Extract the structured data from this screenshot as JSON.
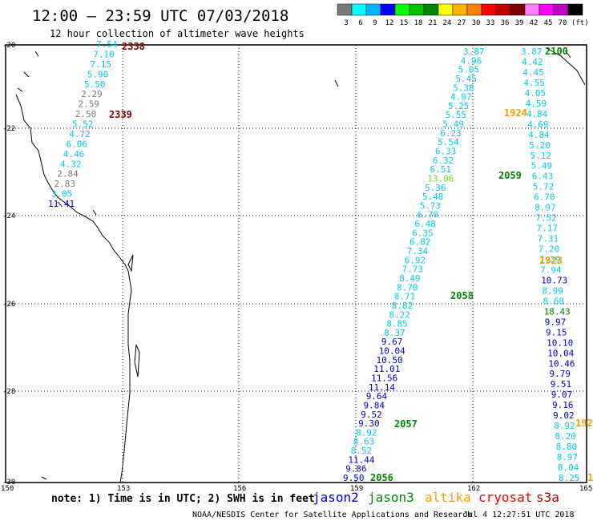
{
  "header": {
    "title": "12:00 – 23:59 UTC 07/03/2018",
    "subtitle": "12 hour collection of altimeter wave heights"
  },
  "colorbar": {
    "unit": "(ft)",
    "bins": [
      {
        "color": "#7a7a7a",
        "label": "3"
      },
      {
        "color": "#00ffff",
        "label": "6"
      },
      {
        "color": "#00b4ff",
        "label": "9"
      },
      {
        "color": "#0000ff",
        "label": "12"
      },
      {
        "color": "#00ff00",
        "label": "15"
      },
      {
        "color": "#00c000",
        "label": "18"
      },
      {
        "color": "#008800",
        "label": "21"
      },
      {
        "color": "#ffff00",
        "label": "24"
      },
      {
        "color": "#ffb400",
        "label": "27"
      },
      {
        "color": "#ff8000",
        "label": "30"
      },
      {
        "color": "#ff0000",
        "label": "33"
      },
      {
        "color": "#c00000",
        "label": "36"
      },
      {
        "color": "#800000",
        "label": "39"
      },
      {
        "color": "#ff80ff",
        "label": "42"
      },
      {
        "color": "#ff00ff",
        "label": "45"
      },
      {
        "color": "#c000c0",
        "label": "70"
      },
      {
        "color": "#000000",
        "label": ""
      }
    ]
  },
  "axes": {
    "lat_labels": [
      "-20",
      "-22",
      "-24",
      "-26",
      "-28",
      "-30"
    ],
    "lon_labels": [
      "150",
      "153",
      "156",
      "159",
      "162",
      "165"
    ]
  },
  "colors": {
    "gray": "#7a7a7a",
    "cyan": "#00ccee",
    "blue": "#0000cc",
    "green": "#008800",
    "orange": "#ff9900",
    "darkred": "#880000",
    "lightgreen": "#66dd22"
  },
  "tracks": {
    "track_a": [
      "7.54",
      "7.10",
      "7.15",
      "5.90",
      "5.50",
      "2.29",
      "2.59",
      "2.50",
      "5.52",
      "4.72",
      "6.06",
      "4.46",
      "4.32",
      "2.84",
      "2.83",
      "3.05",
      "11.41"
    ],
    "track_a_colors": [
      "cyan",
      "cyan",
      "cyan",
      "cyan",
      "cyan",
      "gray",
      "gray",
      "gray",
      "cyan",
      "cyan",
      "cyan",
      "cyan",
      "cyan",
      "gray",
      "gray",
      "cyan",
      "blue"
    ],
    "track_b": [
      "3.87",
      "4.96",
      "5.05",
      "5.45",
      "5.38",
      "4.97",
      "5.25",
      "5.55",
      "5.49",
      "6.23",
      "5.54",
      "6.33",
      "6.32",
      "6.51",
      "13.06",
      "5.36",
      "5.48",
      "5.73",
      "6.70",
      "6.48",
      "6.35",
      "6.82",
      "7.34",
      "6.92",
      "7.73",
      "8.49",
      "8.70",
      "8.71",
      "8.82",
      "8.22",
      "8.85",
      "8.37",
      "9.67",
      "10.04",
      "10.50",
      "11.01",
      "11.56",
      "11.14",
      "9.64",
      "9.84",
      "9.52",
      "9.30",
      "8.92",
      "8.63",
      "8.52",
      "11.44",
      "9.86",
      "9.50"
    ],
    "track_b_colors": [
      "cyan",
      "cyan",
      "cyan",
      "cyan",
      "cyan",
      "cyan",
      "cyan",
      "cyan",
      "cyan",
      "cyan",
      "cyan",
      "cyan",
      "cyan",
      "cyan",
      "lightgreen",
      "cyan",
      "cyan",
      "cyan",
      "cyan",
      "cyan",
      "cyan",
      "cyan",
      "cyan",
      "cyan",
      "cyan",
      "cyan",
      "cyan",
      "cyan",
      "cyan",
      "cyan",
      "cyan",
      "cyan",
      "blue",
      "blue",
      "blue",
      "blue",
      "blue",
      "blue",
      "blue",
      "blue",
      "blue",
      "blue",
      "cyan",
      "cyan",
      "cyan",
      "blue",
      "blue",
      "blue"
    ],
    "track_c": [
      "3.87",
      "4.42",
      "4.45",
      "4.55",
      "4.05",
      "4.59",
      "4.84",
      "4.69",
      "4.84",
      "5.20",
      "5.12",
      "5.49",
      "6.43",
      "5.72",
      "6.70",
      "8.97",
      "7.52",
      "7.17",
      "7.31",
      "7.20",
      "7.39",
      "7.94",
      "10.73",
      "8.99",
      "8.68",
      "18.43",
      "9.97",
      "9.15",
      "10.10",
      "10.04",
      "10.46",
      "9.79",
      "9.51",
      "9.07",
      "9.16",
      "9.02",
      "8.92",
      "8.20",
      "8.80",
      "8.97",
      "8.04",
      "8.25"
    ],
    "track_c_colors": [
      "cyan",
      "cyan",
      "cyan",
      "cyan",
      "cyan",
      "cyan",
      "cyan",
      "cyan",
      "cyan",
      "cyan",
      "cyan",
      "cyan",
      "cyan",
      "cyan",
      "cyan",
      "cyan",
      "cyan",
      "cyan",
      "cyan",
      "cyan",
      "cyan",
      "cyan",
      "blue",
      "cyan",
      "cyan",
      "green",
      "blue",
      "blue",
      "blue",
      "blue",
      "blue",
      "blue",
      "blue",
      "blue",
      "blue",
      "blue",
      "cyan",
      "cyan",
      "cyan",
      "cyan",
      "cyan",
      "cyan"
    ]
  },
  "pass_times": [
    {
      "label": "2338",
      "color": "darkred"
    },
    {
      "label": "2339",
      "color": "darkred"
    },
    {
      "label": "2100",
      "color": "green"
    },
    {
      "label": "1924",
      "color": "orange"
    },
    {
      "label": "2059",
      "color": "green"
    },
    {
      "label": "1923",
      "color": "orange"
    },
    {
      "label": "2058",
      "color": "green"
    },
    {
      "label": "2057",
      "color": "green"
    },
    {
      "label": "2056",
      "color": "green"
    },
    {
      "label": "192",
      "color": "orange"
    },
    {
      "label": "1",
      "color": "orange"
    }
  ],
  "footer": {
    "note": "note: 1) Time is in UTC; 2) SWH is in feet",
    "legend": [
      {
        "label": "jason2",
        "color": "#0000ee"
      },
      {
        "label": "jason3",
        "color": "#008800"
      },
      {
        "label": "altika",
        "color": "#ff9900"
      },
      {
        "label": "cryosat",
        "color": "#ee0000"
      },
      {
        "label": "s3a",
        "color": "#aa0000"
      }
    ],
    "credit": "NOAA/NESDIS Center for Satellite Applications and Research",
    "timestamp": "Jul  4 12:27:51 UTC 2018"
  }
}
